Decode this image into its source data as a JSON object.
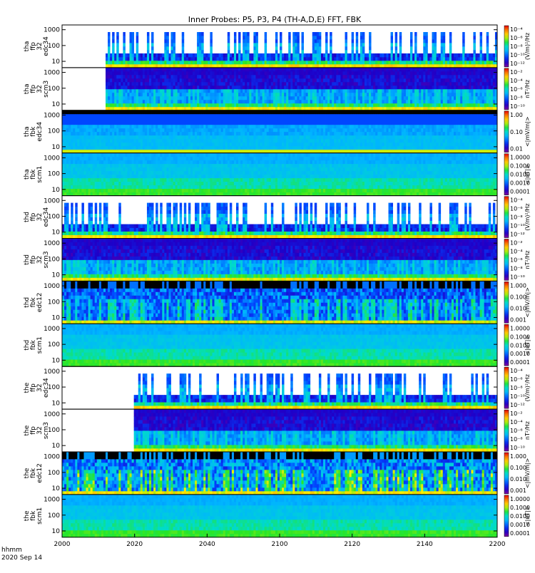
{
  "title": "Inner Probes: P5, P3, P4 (TH-A,D,E) FFT, FBK",
  "time_label_1": "hhmm",
  "time_label_2": "2020 Sep 14",
  "chart_data": {
    "type": "heatmap",
    "title": "Inner Probes: P5, P3, P4 (TH-A,D,E) FFT, FBK",
    "x_ticks": [
      "2000",
      "2020",
      "2040",
      "2100",
      "2120",
      "2140",
      "2200"
    ],
    "x_range": [
      "20:00",
      "22:00"
    ],
    "y_scale": "log",
    "y_ticks": [
      "10",
      "100",
      "1000"
    ],
    "grid": false,
    "panels": [
      {
        "probe": "tha",
        "label": [
          "tha",
          "ffp",
          "32",
          "edc34"
        ],
        "data_start": 0.1,
        "cbar_ticks": [
          "10⁻⁴",
          "10⁻⁶",
          "10⁻⁸",
          "10⁻¹⁰",
          "10⁻¹²"
        ],
        "cbar_label": "(V/m)²/Hz",
        "pattern": "ffp_e"
      },
      {
        "probe": "tha",
        "label": [
          "tha",
          "ffp",
          "32",
          "scm3"
        ],
        "data_start": 0.1,
        "cbar_ticks": [
          "10⁻²",
          "10⁻⁴",
          "10⁻⁶",
          "10⁻⁸",
          "10⁻¹⁰"
        ],
        "cbar_label": "nT²/Hz",
        "pattern": "ffp_b"
      },
      {
        "probe": "tha",
        "label": [
          "tha",
          "fbk",
          "edc34"
        ],
        "data_start": 0.0,
        "cbar_ticks": [
          "1.00",
          "0.10",
          "0.01"
        ],
        "cbar_label": "<|mV/m|>",
        "pattern": "fbk_e_quiet"
      },
      {
        "probe": "tha",
        "label": [
          "tha",
          "fbk",
          "scm1"
        ],
        "data_start": 0.0,
        "cbar_ticks": [
          "1.0000",
          "0.1000",
          "0.0100",
          "0.0010",
          "0.0001"
        ],
        "cbar_label": "<|nT|>",
        "pattern": "fbk_b"
      },
      {
        "probe": "thd",
        "label": [
          "thd",
          "ffp",
          "32",
          "edc34"
        ],
        "data_start": 0.0,
        "cbar_ticks": [
          "10⁻⁴",
          "10⁻⁶",
          "10⁻⁸",
          "10⁻¹⁰",
          "10⁻¹²"
        ],
        "cbar_label": "(V/m)²/Hz",
        "pattern": "ffp_e"
      },
      {
        "probe": "thd",
        "label": [
          "thd",
          "ffp",
          "32",
          "scm3"
        ],
        "data_start": 0.0,
        "cbar_ticks": [
          "10⁻²",
          "10⁻⁴",
          "10⁻⁶",
          "10⁻⁸",
          "10⁻¹⁰"
        ],
        "cbar_label": "nT²/Hz",
        "pattern": "ffp_b"
      },
      {
        "probe": "thd",
        "label": [
          "thd",
          "fbk",
          "edc12"
        ],
        "data_start": 0.0,
        "cbar_ticks": [
          "1.000",
          "0.100",
          "0.010",
          "0.001"
        ],
        "cbar_label": "<|mV/m|>",
        "pattern": "fbk_e"
      },
      {
        "probe": "thd",
        "label": [
          "thd",
          "fbk",
          "scm1"
        ],
        "data_start": 0.0,
        "cbar_ticks": [
          "1.0000",
          "0.1000",
          "0.0100",
          "0.0010",
          "0.0001"
        ],
        "cbar_label": "<|nT|>",
        "pattern": "fbk_b"
      },
      {
        "probe": "the",
        "label": [
          "the",
          "ffp",
          "32",
          "edc34"
        ],
        "data_start": 0.165,
        "cbar_ticks": [
          "10⁻⁴",
          "10⁻⁶",
          "10⁻⁸",
          "10⁻¹⁰",
          "10⁻¹²"
        ],
        "cbar_label": "(V/m)²/Hz",
        "pattern": "ffp_e"
      },
      {
        "probe": "the",
        "label": [
          "the",
          "ffp",
          "32",
          "scm3"
        ],
        "data_start": 0.165,
        "cbar_ticks": [
          "10⁻²",
          "10⁻⁴",
          "10⁻⁶",
          "10⁻⁸",
          "10⁻¹⁰"
        ],
        "cbar_label": "nT²/Hz",
        "pattern": "ffp_b"
      },
      {
        "probe": "the",
        "label": [
          "the",
          "fbk",
          "edc12"
        ],
        "data_start": 0.0,
        "cbar_ticks": [
          "1.000",
          "0.100",
          "0.010",
          "0.001"
        ],
        "cbar_label": "<|mV/m|>",
        "pattern": "fbk_e_active"
      },
      {
        "probe": "the",
        "label": [
          "the",
          "fbk",
          "scm1"
        ],
        "data_start": 0.0,
        "cbar_ticks": [
          "1.0000",
          "0.1000",
          "0.0100",
          "0.0010",
          "0.0001"
        ],
        "cbar_label": "<|nT|>",
        "pattern": "fbk_b"
      }
    ]
  }
}
